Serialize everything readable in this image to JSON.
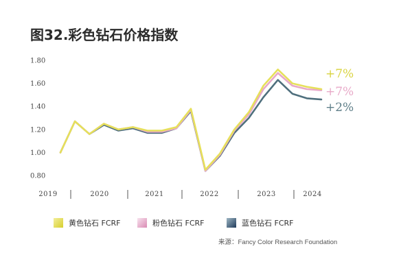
{
  "chart_data": {
    "type": "line",
    "title": "图32.彩色钻石价格指数",
    "ylim": [
      0.8,
      1.8
    ],
    "yticks": [
      "0.80",
      "1.00",
      "1.20",
      "1.40",
      "1.60",
      "1.80"
    ],
    "years": [
      "2019",
      "2020",
      "2021",
      "2022",
      "2023",
      "2024"
    ],
    "series": [
      {
        "name": "黄色钻石 FCRF",
        "color": "#e6e05a",
        "change_label": "+7%",
        "values": [
          1.0,
          1.27,
          1.16,
          1.25,
          1.2,
          1.22,
          1.19,
          1.19,
          1.22,
          1.38,
          0.85,
          0.99,
          1.2,
          1.35,
          1.58,
          1.72,
          1.6,
          1.57,
          1.55
        ]
      },
      {
        "name": "粉色钻石 FCRF",
        "color": "#e8a9c8",
        "change_label": "+7%",
        "values": [
          1.0,
          1.27,
          1.16,
          1.25,
          1.2,
          1.22,
          1.18,
          1.18,
          1.21,
          1.37,
          0.84,
          0.98,
          1.19,
          1.33,
          1.55,
          1.69,
          1.58,
          1.55,
          1.54
        ]
      },
      {
        "name": "蓝色钻石 FCRF",
        "color": "#4f6f7d",
        "change_label": "+2%",
        "values": [
          1.0,
          1.27,
          1.16,
          1.24,
          1.19,
          1.21,
          1.17,
          1.17,
          1.21,
          1.36,
          0.84,
          0.97,
          1.17,
          1.3,
          1.48,
          1.63,
          1.51,
          1.47,
          1.46
        ]
      }
    ],
    "legend_position": "bottom",
    "source": "来源：Fancy Color Research Foundation"
  }
}
